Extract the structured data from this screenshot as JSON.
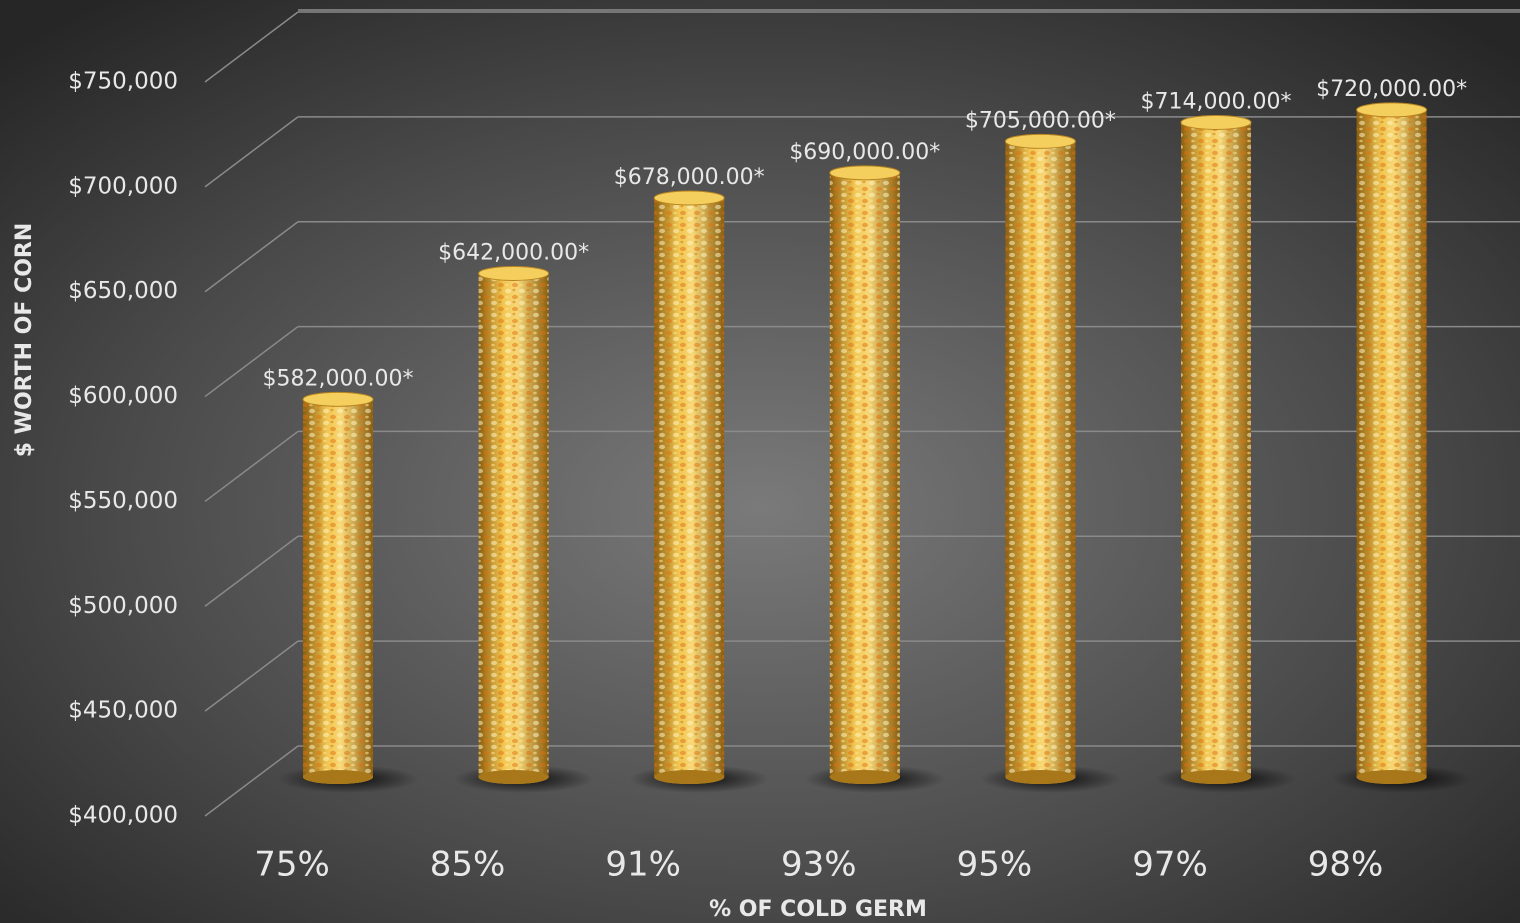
{
  "chart_data": {
    "type": "bar",
    "y_axis_label": "$ WORTH OF CORN",
    "x_axis_label": "% OF COLD GERM",
    "categories": [
      "75%",
      "85%",
      "91%",
      "93%",
      "95%",
      "97%",
      "98%"
    ],
    "values": [
      582000,
      642000,
      678000,
      690000,
      705000,
      714000,
      720000
    ],
    "value_labels": [
      "$582,000.00*",
      "$642,000.00*",
      "$678,000.00*",
      "$690,000.00*",
      "$705,000.00*",
      "$714,000.00*",
      "$720,000.00*"
    ],
    "color": "#e0a92c",
    "ylim": [
      400000,
      750000
    ],
    "yticks": [
      {
        "value": 400000,
        "label": "$400,000"
      },
      {
        "value": 450000,
        "label": "$450,000"
      },
      {
        "value": 500000,
        "label": "$500,000"
      },
      {
        "value": 550000,
        "label": "$550,000"
      },
      {
        "value": 600000,
        "label": "$600,000"
      },
      {
        "value": 650000,
        "label": "$650,000"
      },
      {
        "value": 700000,
        "label": "$700,000"
      },
      {
        "value": 750000,
        "label": "$750,000"
      }
    ],
    "grid": true
  }
}
